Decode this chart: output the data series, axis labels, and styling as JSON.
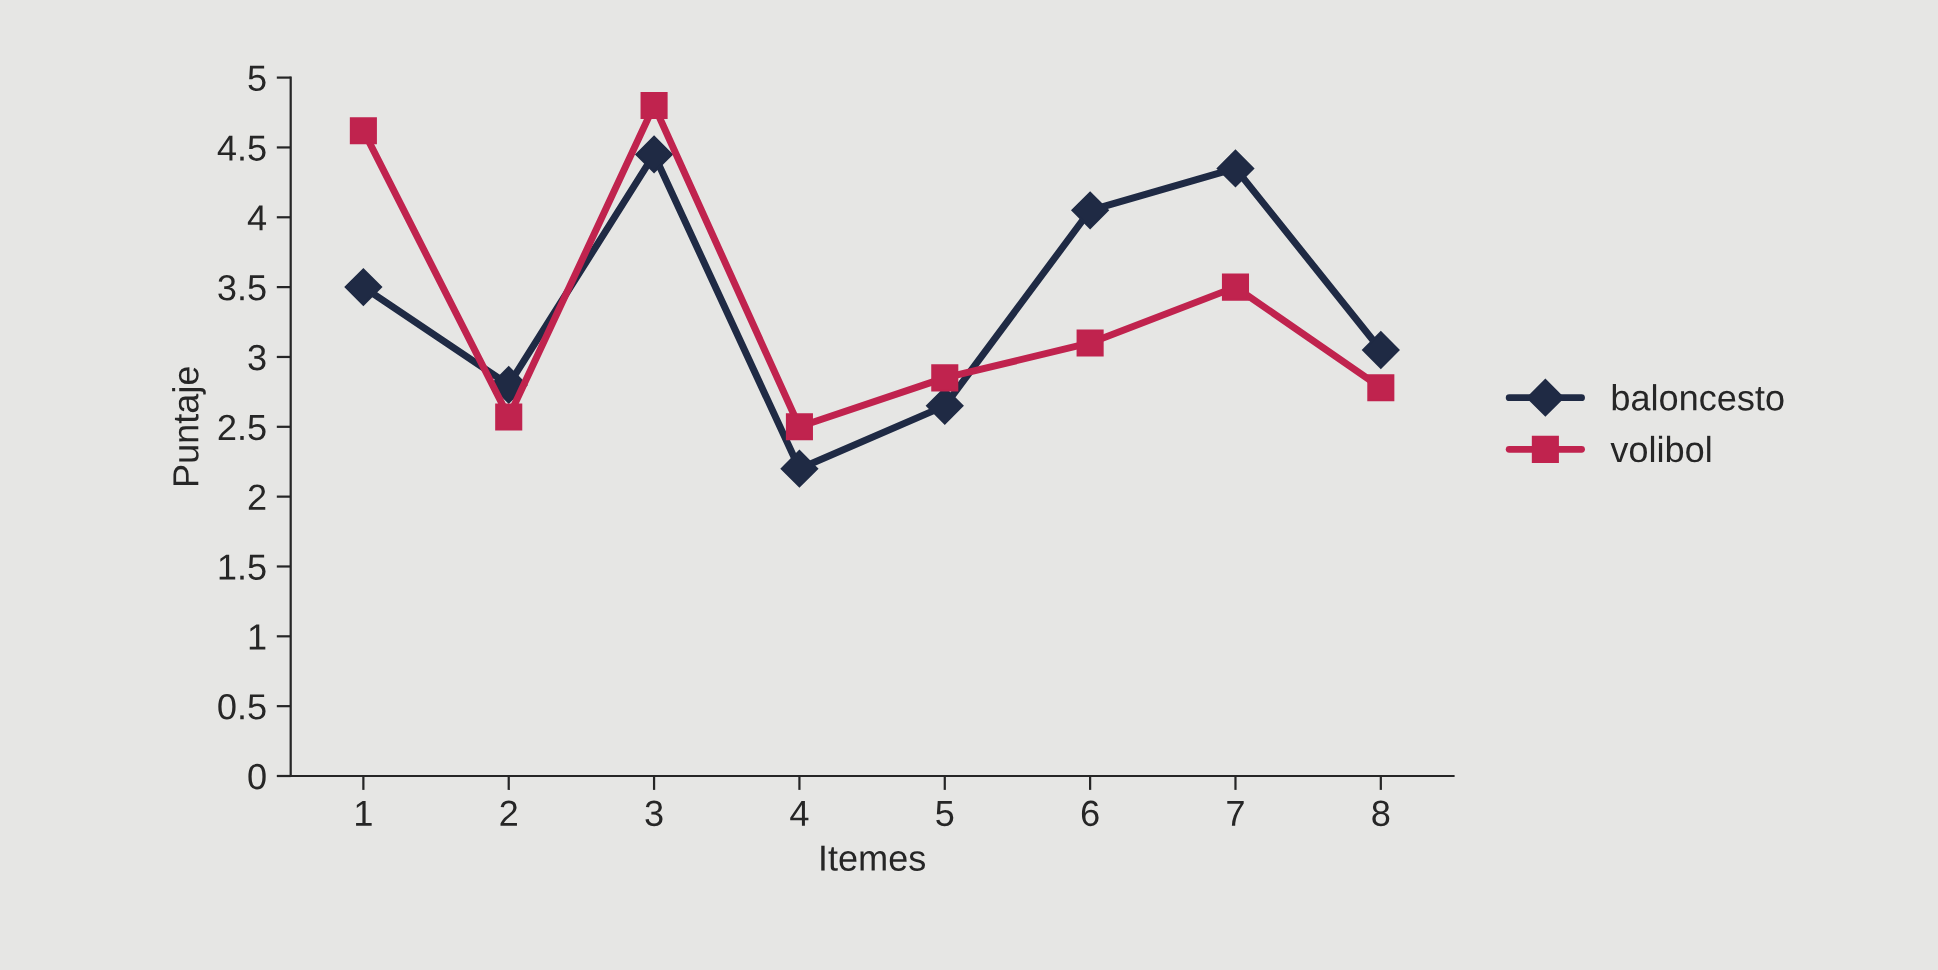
{
  "chart_data": {
    "type": "line",
    "xlabel": "Itemes",
    "ylabel": "Puntaje",
    "categories": [
      "1",
      "2",
      "3",
      "4",
      "5",
      "6",
      "7",
      "8"
    ],
    "series": [
      {
        "name": "baloncesto",
        "color": "#1f2a44",
        "marker": "diamond",
        "values": [
          3.5,
          2.8,
          4.45,
          2.2,
          2.65,
          4.05,
          4.35,
          3.05
        ]
      },
      {
        "name": "volibol",
        "color": "#c0234e",
        "marker": "square",
        "values": [
          4.62,
          2.57,
          4.8,
          2.5,
          2.85,
          3.1,
          3.5,
          2.78
        ]
      }
    ],
    "ylim": [
      0,
      5
    ],
    "yticks": [
      0,
      0.5,
      1,
      1.5,
      2,
      2.5,
      3,
      3.5,
      4,
      4.5,
      5
    ],
    "grid": false,
    "legend": "right",
    "line_style": "solid"
  }
}
